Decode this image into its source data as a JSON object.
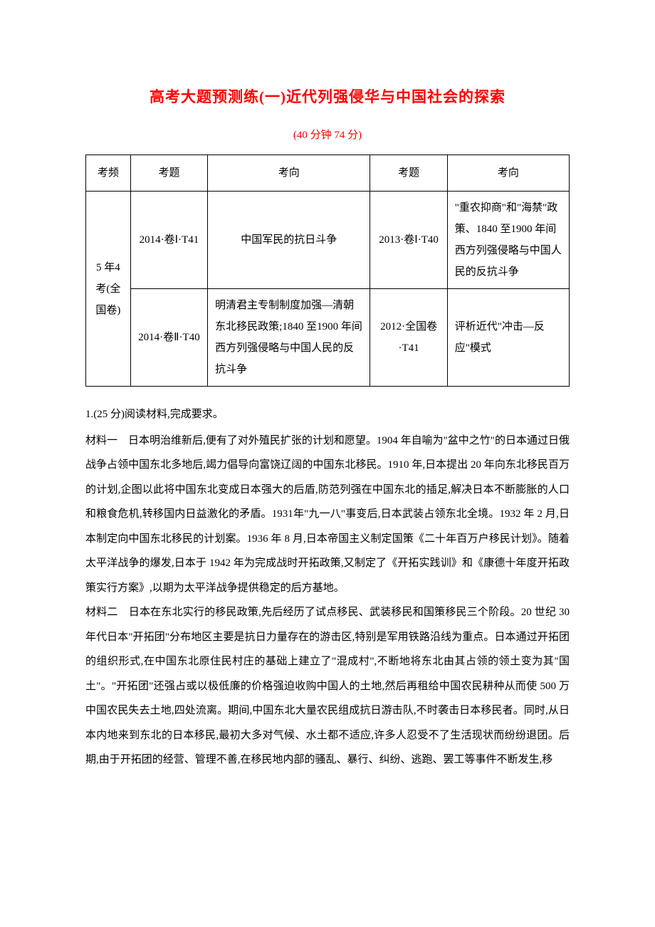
{
  "title": "高考大题预测练(一)近代列强侵华与中国社会的探索",
  "subtitle": "(40 分钟  74 分)",
  "table": {
    "headers": [
      "考频",
      "考题",
      "考向",
      "考题",
      "考向"
    ],
    "freq_label": "5 年4 考(全国卷)",
    "rows": [
      {
        "exam1": "2014·卷Ⅰ·T41",
        "dir1": "中国军民的抗日斗争",
        "exam2": "2013·卷Ⅰ·T40",
        "dir2": "\"重农抑商\"和\"海禁\"政策、1840 至1900 年间西方列强侵略与中国人民的反抗斗争"
      },
      {
        "exam1": "2014·卷Ⅱ·T40",
        "dir1": "明清君主专制制度加强—清朝东北移民政策;1840 至1900 年间西方列强侵略与中国人民的反抗斗争",
        "exam2": "2012·全国卷·T41",
        "dir2": "评析近代\"冲击—反应\"模式"
      }
    ]
  },
  "question": {
    "label": "1.(25 分)阅读材料,完成要求。",
    "material1_label": "材料一",
    "material1_text": "日本明治维新后,便有了对外殖民扩张的计划和愿望。1904 年自喻为\"盆中之竹\"的日本通过日俄战争占领中国东北多地后,竭力倡导向富饶辽阔的中国东北移民。1910 年,日本提出 20 年向东北移民百万的计划,企图以此将中国东北变成日本强大的后盾,防范列强在中国东北的插足,解决日本不断膨胀的人口和粮食危机,转移国内日益激化的矛盾。1931年\"九一八\"事变后,日本武装占领东北全境。1932 年 2 月,日本制定向中国东北移民的计划案。1936 年 8 月,日本帝国主义制定国策《二十年百万户移民计划》。随着太平洋战争的爆发,日本于 1942 年为完成战时开拓政策,又制定了《开拓实践训》和《康德十年度开拓政策实行方案》,以期为太平洋战争提供稳定的后方基地。",
    "material2_label": "材料二",
    "material2_text": "日本在东北实行的移民政策,先后经历了试点移民、武装移民和国策移民三个阶段。20 世纪 30 年代日本\"开拓团\"分布地区主要是抗日力量存在的游击区,特别是军用铁路沿线为重点。日本通过开拓团的组织形式,在中国东北原住民村庄的基础上建立了\"混成村\",不断地将东北由其占领的领土变为其\"国土\"。\"开拓团\"还强占或以极低廉的价格强迫收购中国人的土地,然后再租给中国农民耕种从而使 500 万中国农民失去土地,四处流离。期间,中国东北大量农民组成抗日游击队,不时袭击日本移民者。同时,从日本内地来到东北的日本移民,最初大多对气候、水土都不适应,许多人忍受不了生活现状而纷纷退团。后期,由于开拓团的经营、管理不善,在移民地内部的骚乱、暴行、纠纷、逃跑、罢工等事件不断发生,移"
  },
  "colors": {
    "title_color": "#ff0000",
    "text_color": "#000000",
    "border_color": "#000000",
    "background": "#ffffff"
  }
}
